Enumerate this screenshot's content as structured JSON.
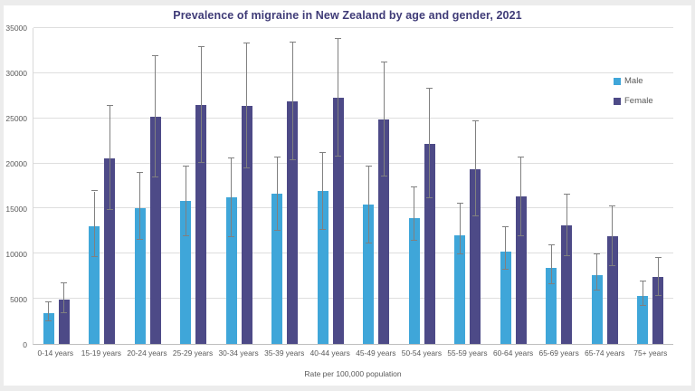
{
  "chart_data": {
    "type": "bar",
    "title": "Prevalence of migraine in New Zealand by age and gender, 2021",
    "xlabel": "Rate per 100,000 population",
    "ylabel": "",
    "ylim": [
      0,
      35000
    ],
    "yticks": [
      0,
      5000,
      10000,
      15000,
      20000,
      25000,
      30000,
      35000
    ],
    "grid": true,
    "legend_position": "inside-right",
    "error_bars": true,
    "categories": [
      "0-14 years",
      "15-19 years",
      "20-24 years",
      "25-29 years",
      "30-34 years",
      "35-39 years",
      "40-44 years",
      "45-49 years",
      "50-54 years",
      "55-59 years",
      "60-64 years",
      "65-69 years",
      "65-74 years",
      "75+ years"
    ],
    "series": [
      {
        "name": "Male",
        "color": "#3fa6d9",
        "values": [
          3400,
          13000,
          15000,
          15800,
          16200,
          16600,
          16900,
          15400,
          13900,
          12000,
          10200,
          8400,
          7600,
          5300
        ],
        "error_high": [
          4600,
          16900,
          19000,
          19700,
          20600,
          20700,
          21200,
          19700,
          17400,
          15500,
          12900,
          10900,
          9900,
          6900
        ],
        "error_low": [
          2500,
          9600,
          11500,
          11900,
          11800,
          12500,
          12600,
          11100,
          11400,
          9900,
          8200,
          6600,
          5900,
          4200
        ]
      },
      {
        "name": "Female",
        "color": "#4d4a87",
        "values": [
          4900,
          20600,
          25200,
          26500,
          26400,
          26900,
          27300,
          24900,
          22200,
          19400,
          16300,
          13100,
          11900,
          7400
        ],
        "error_high": [
          6700,
          26400,
          31900,
          32900,
          33300,
          33400,
          33800,
          31200,
          28300,
          24700,
          20700,
          16500,
          15200,
          9500
        ],
        "error_low": [
          3400,
          14800,
          18500,
          20100,
          19500,
          20400,
          20800,
          18600,
          16100,
          14100,
          11900,
          9700,
          8600,
          5300
        ]
      }
    ]
  },
  "colors": {
    "title": "#3f3b77",
    "axis_text": "#595959",
    "gridline": "#dedede",
    "error_bar": "#808080",
    "plot_background": "#ffffff"
  }
}
